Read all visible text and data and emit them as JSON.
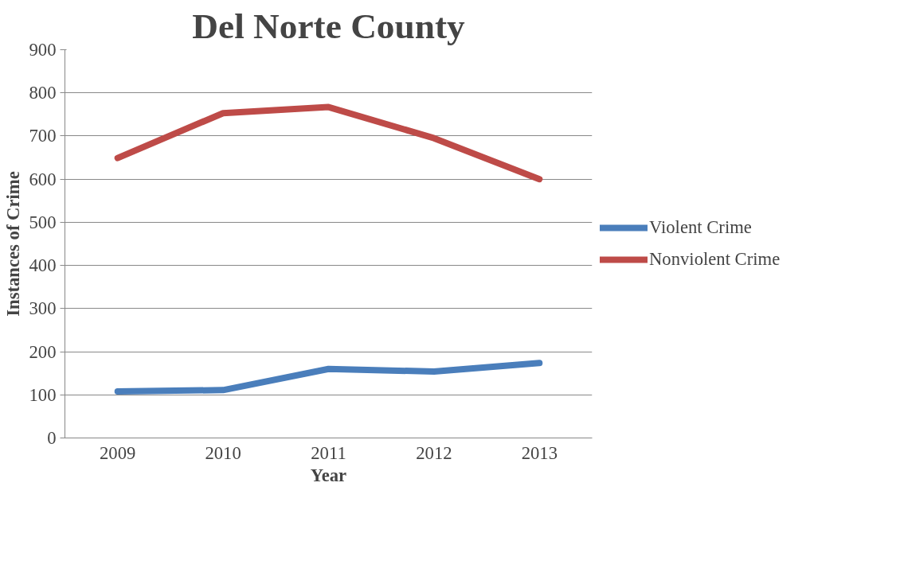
{
  "chart_data": {
    "type": "line",
    "title": "Del Norte County",
    "xlabel": "Year",
    "ylabel": "Instances of Crime",
    "categories": [
      "2009",
      "2010",
      "2011",
      "2012",
      "2013"
    ],
    "series": [
      {
        "name": "Violent Crime",
        "color": "#4a7ebb",
        "values": [
          108,
          111,
          160,
          154,
          174
        ]
      },
      {
        "name": "Nonviolent Crime",
        "color": "#be4b48",
        "values": [
          649,
          753,
          767,
          695,
          600
        ]
      }
    ],
    "ylim": [
      0,
      900
    ],
    "yticks": [
      0,
      100,
      200,
      300,
      400,
      500,
      600,
      700,
      800,
      900
    ],
    "grid": "y",
    "legend": "right",
    "marker": "none",
    "line_style": "solid"
  }
}
